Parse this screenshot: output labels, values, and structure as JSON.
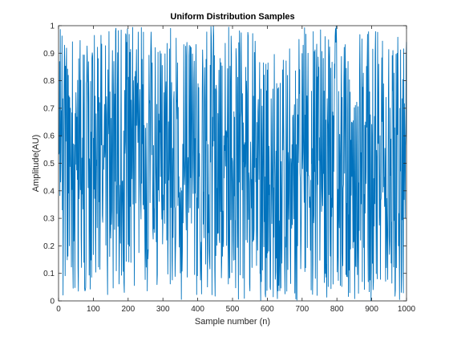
{
  "chart_data": {
    "type": "line",
    "title": "Uniform Distribution Samples",
    "xlabel": "Sample number (n)",
    "ylabel": "Amplitude(AU)",
    "xlim": [
      0,
      1000
    ],
    "ylim": [
      0,
      1
    ],
    "x_ticks": [
      "0",
      "100",
      "200",
      "300",
      "400",
      "500",
      "600",
      "700",
      "800",
      "900",
      "1000"
    ],
    "y_ticks": [
      "0",
      "0.1",
      "0.2",
      "0.3",
      "0.4",
      "0.5",
      "0.6",
      "0.7",
      "0.8",
      "0.9",
      "1"
    ],
    "grid": false,
    "series": [
      {
        "color": "#0072BD",
        "distribution": "uniform",
        "n_samples": 1000,
        "x_start": 1,
        "x_end": 1000,
        "min": 0,
        "max": 1
      }
    ]
  }
}
